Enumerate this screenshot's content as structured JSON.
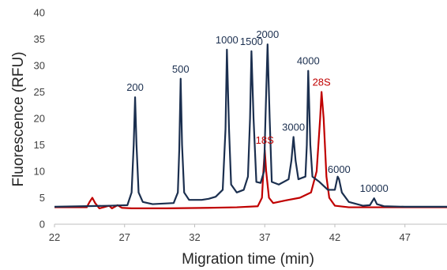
{
  "chart_data": {
    "type": "line",
    "title": "",
    "xlabel": "Migration time (min)",
    "ylabel": "Fluorescence (RFU)",
    "xlim": [
      22,
      50
    ],
    "ylim": [
      0,
      40
    ],
    "xticks": [
      22,
      27,
      32,
      37,
      42,
      47
    ],
    "yticks": [
      0,
      5,
      10,
      15,
      20,
      25,
      30,
      35,
      40
    ],
    "grid": false,
    "legend": "none",
    "series": [
      {
        "color": "#1b2f4f",
        "points": [
          [
            22,
            3.3
          ],
          [
            24,
            3.4
          ],
          [
            26,
            3.5
          ],
          [
            27.2,
            3.6
          ],
          [
            27.5,
            6
          ],
          [
            27.65,
            15
          ],
          [
            27.75,
            24
          ],
          [
            27.85,
            15
          ],
          [
            28.0,
            6
          ],
          [
            28.3,
            4.2
          ],
          [
            29,
            3.8
          ],
          [
            30.5,
            4.0
          ],
          [
            30.8,
            6
          ],
          [
            30.9,
            14
          ],
          [
            31.0,
            27.5
          ],
          [
            31.1,
            15
          ],
          [
            31.25,
            6
          ],
          [
            31.6,
            4.6
          ],
          [
            32.5,
            4.6
          ],
          [
            33,
            4.8
          ],
          [
            33.5,
            5.2
          ],
          [
            34.0,
            6.5
          ],
          [
            34.2,
            18
          ],
          [
            34.3,
            33
          ],
          [
            34.45,
            18
          ],
          [
            34.6,
            7.5
          ],
          [
            35.0,
            6
          ],
          [
            35.5,
            6.5
          ],
          [
            35.8,
            9
          ],
          [
            35.95,
            20
          ],
          [
            36.05,
            32.7
          ],
          [
            36.2,
            20
          ],
          [
            36.4,
            8
          ],
          [
            36.7,
            7.8
          ],
          [
            36.95,
            10
          ],
          [
            37.05,
            20
          ],
          [
            37.2,
            34
          ],
          [
            37.35,
            20
          ],
          [
            37.5,
            8
          ],
          [
            38,
            7.5
          ],
          [
            38.7,
            8.5
          ],
          [
            38.9,
            12
          ],
          [
            39.05,
            16.5
          ],
          [
            39.2,
            12
          ],
          [
            39.4,
            8.5
          ],
          [
            39.9,
            9
          ],
          [
            40.0,
            15
          ],
          [
            40.1,
            29
          ],
          [
            40.25,
            15
          ],
          [
            40.4,
            9
          ],
          [
            40.9,
            8
          ],
          [
            41.5,
            6.5
          ],
          [
            42.0,
            6.5
          ],
          [
            42.2,
            9
          ],
          [
            42.3,
            8.5
          ],
          [
            42.5,
            6
          ],
          [
            43,
            4.2
          ],
          [
            44,
            3.5
          ],
          [
            44.5,
            3.6
          ],
          [
            44.8,
            4.9
          ],
          [
            45.0,
            3.8
          ],
          [
            45.5,
            3.4
          ],
          [
            47,
            3.3
          ],
          [
            50,
            3.3
          ]
        ],
        "labels": [
          {
            "text": "200",
            "x": 27.75,
            "y": 24
          },
          {
            "text": "500",
            "x": 31.0,
            "y": 27.5
          },
          {
            "text": "1000",
            "x": 34.3,
            "y": 33
          },
          {
            "text": "1500",
            "x": 36.05,
            "y": 32.7
          },
          {
            "text": "2000",
            "x": 37.2,
            "y": 34
          },
          {
            "text": "3000",
            "x": 39.05,
            "y": 16.5
          },
          {
            "text": "4000",
            "x": 40.1,
            "y": 29
          },
          {
            "text": "6000",
            "x": 42.3,
            "y": 8.5
          },
          {
            "text": "10000",
            "x": 44.8,
            "y": 4.9
          }
        ]
      },
      {
        "color": "#c00000",
        "points": [
          [
            22,
            3.2
          ],
          [
            24.3,
            3.2
          ],
          [
            24.5,
            4.2
          ],
          [
            24.7,
            5.0
          ],
          [
            24.9,
            4.0
          ],
          [
            25.2,
            3.0
          ],
          [
            25.5,
            3.2
          ],
          [
            25.9,
            3.5
          ],
          [
            26.1,
            3.0
          ],
          [
            26.5,
            3.6
          ],
          [
            26.8,
            3.1
          ],
          [
            27.5,
            3.0
          ],
          [
            30,
            3.0
          ],
          [
            33,
            3.1
          ],
          [
            35,
            3.2
          ],
          [
            36.5,
            3.4
          ],
          [
            36.8,
            5
          ],
          [
            36.9,
            10
          ],
          [
            37.0,
            14
          ],
          [
            37.1,
            10
          ],
          [
            37.3,
            5
          ],
          [
            37.6,
            4.0
          ],
          [
            38.5,
            4.5
          ],
          [
            39.5,
            5
          ],
          [
            40.3,
            6
          ],
          [
            40.7,
            10
          ],
          [
            40.95,
            20
          ],
          [
            41.05,
            25
          ],
          [
            41.2,
            20
          ],
          [
            41.4,
            9
          ],
          [
            41.6,
            5
          ],
          [
            42,
            3.5
          ],
          [
            43,
            3.2
          ],
          [
            45,
            3.2
          ],
          [
            48,
            3.2
          ],
          [
            50,
            3.2
          ]
        ],
        "labels": [
          {
            "text": "18S",
            "x": 37.0,
            "y": 14
          },
          {
            "text": "28S",
            "x": 41.05,
            "y": 25
          }
        ]
      }
    ]
  }
}
